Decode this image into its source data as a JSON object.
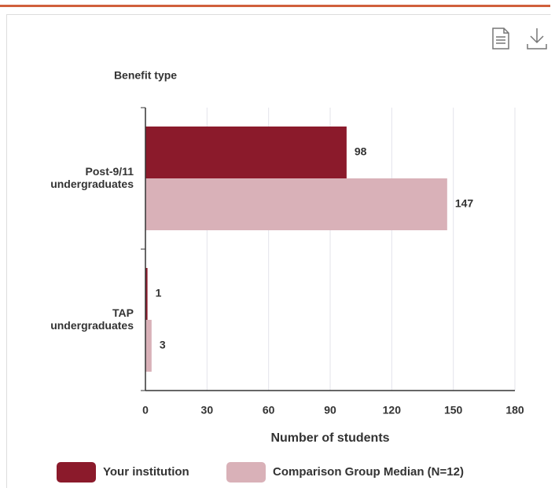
{
  "chart_data": {
    "type": "bar",
    "orientation": "horizontal",
    "y_axis_title": "Benefit type",
    "x_axis_title": "Number of students",
    "categories": [
      "Post-9/11 undergraduates",
      "TAP undergraduates"
    ],
    "series": [
      {
        "name": "Your institution",
        "color": "#8b1a2b",
        "values": [
          98,
          1
        ]
      },
      {
        "name": "Comparison Group Median (N=12)",
        "color": "#d9b1b8",
        "values": [
          147,
          3
        ]
      }
    ],
    "xlim": [
      0,
      180
    ],
    "xticks": [
      0,
      30,
      60,
      90,
      120,
      150,
      180
    ],
    "grid": true,
    "legend": "bottom"
  }
}
